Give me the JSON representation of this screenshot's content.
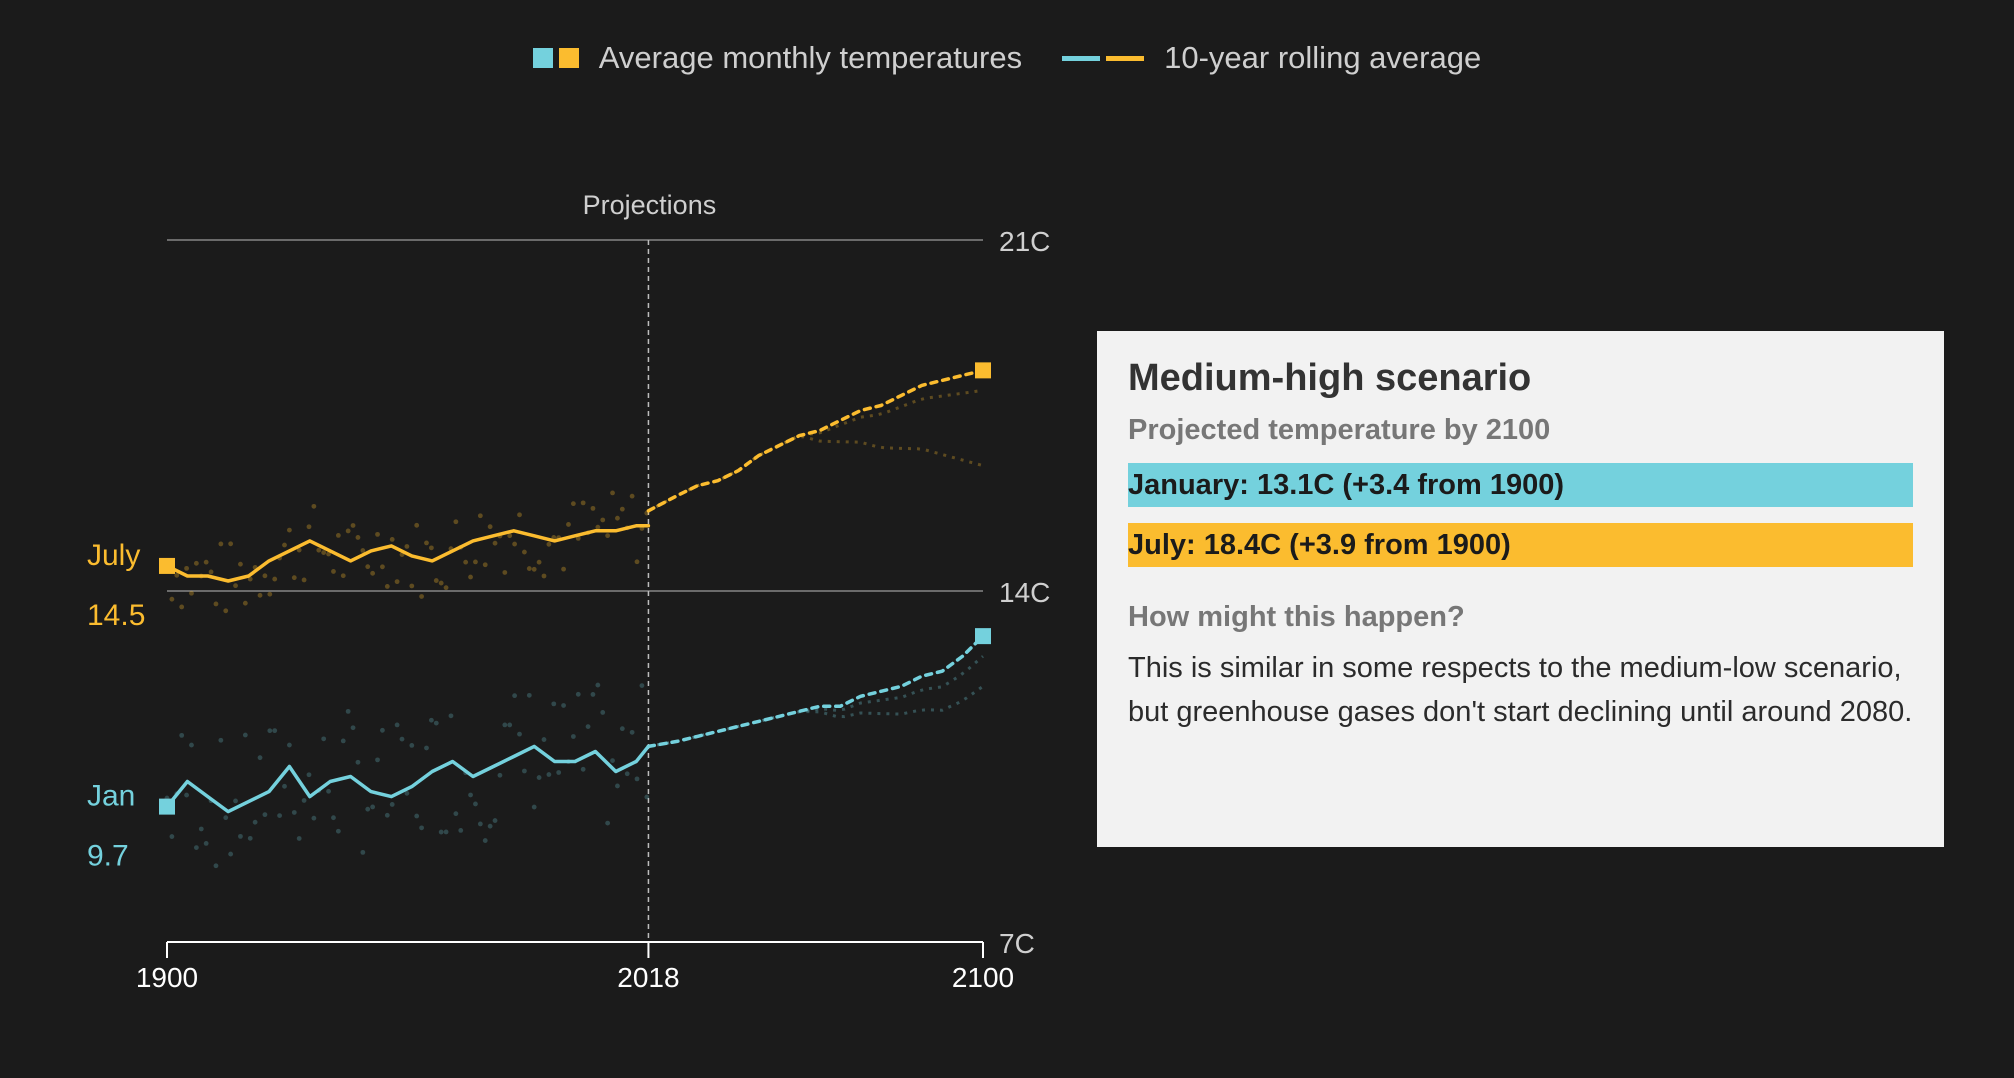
{
  "legend": {
    "monthly_label": "Average monthly temperatures",
    "rolling_label": "10-year rolling average"
  },
  "colors": {
    "jan": "#74d1dd",
    "jul": "#fbbc2f",
    "background": "#1b1b1b",
    "grid": "#6b6b6b",
    "text": "#cfcfcf"
  },
  "card": {
    "title": "Medium-high scenario",
    "subtitle": "Projected temperature by 2100",
    "january": "January: 13.1C (+3.4 from 1900)",
    "july": "July: 18.4C (+3.9 from 1900)",
    "question": "How might this happen?",
    "description": "This is similar in some respects to the medium-low scenario, but greenhouse gases don't start declining until around 2080."
  },
  "chart_data": {
    "type": "line",
    "title": "",
    "xlabel": "",
    "ylabel": "",
    "xlim": [
      1900,
      2100
    ],
    "ylim": [
      7,
      21
    ],
    "x_ticks": [
      1900,
      2018,
      2100
    ],
    "y_ticks": [
      {
        "value": 21,
        "label": "21C"
      },
      {
        "value": 14,
        "label": "14C"
      },
      {
        "value": 7,
        "label": "7C"
      }
    ],
    "projection_start": 2018,
    "projection_label": "Projections",
    "series_labels": [
      {
        "name": "July",
        "value_label": "14.5"
      },
      {
        "name": "Jan",
        "value_label": "9.7"
      }
    ],
    "series": [
      {
        "name": "July 10-year rolling average",
        "x": [
          1900,
          1905,
          1910,
          1915,
          1920,
          1925,
          1930,
          1935,
          1940,
          1945,
          1950,
          1955,
          1960,
          1965,
          1970,
          1975,
          1980,
          1985,
          1990,
          1995,
          2000,
          2005,
          2010,
          2015,
          2018
        ],
        "values": [
          14.5,
          14.3,
          14.3,
          14.2,
          14.3,
          14.6,
          14.8,
          15.0,
          14.8,
          14.6,
          14.8,
          14.9,
          14.7,
          14.6,
          14.8,
          15.0,
          15.1,
          15.2,
          15.1,
          15.0,
          15.1,
          15.2,
          15.2,
          15.3,
          15.3
        ]
      },
      {
        "name": "July projection",
        "x": [
          2018,
          2025,
          2030,
          2035,
          2040,
          2045,
          2050,
          2055,
          2060,
          2065,
          2070,
          2075,
          2080,
          2085,
          2090,
          2095,
          2100
        ],
        "values": [
          15.6,
          15.9,
          16.1,
          16.2,
          16.4,
          16.7,
          16.9,
          17.1,
          17.2,
          17.4,
          17.6,
          17.7,
          17.9,
          18.1,
          18.2,
          18.3,
          18.4
        ]
      },
      {
        "name": "January 10-year rolling average",
        "x": [
          1900,
          1905,
          1910,
          1915,
          1920,
          1925,
          1930,
          1935,
          1940,
          1945,
          1950,
          1955,
          1960,
          1965,
          1970,
          1975,
          1980,
          1985,
          1990,
          1995,
          2000,
          2005,
          2010,
          2015,
          2018
        ],
        "values": [
          9.7,
          10.2,
          9.9,
          9.6,
          9.8,
          10.0,
          10.5,
          9.9,
          10.2,
          10.3,
          10.0,
          9.9,
          10.1,
          10.4,
          10.6,
          10.3,
          10.5,
          10.7,
          10.9,
          10.6,
          10.6,
          10.8,
          10.4,
          10.6,
          10.9
        ]
      },
      {
        "name": "January projection",
        "x": [
          2018,
          2025,
          2030,
          2035,
          2040,
          2045,
          2050,
          2055,
          2060,
          2065,
          2070,
          2075,
          2080,
          2085,
          2090,
          2095,
          2100
        ],
        "values": [
          10.9,
          11.0,
          11.1,
          11.2,
          11.3,
          11.4,
          11.5,
          11.6,
          11.7,
          11.7,
          11.9,
          12.0,
          12.1,
          12.3,
          12.4,
          12.7,
          13.1
        ]
      }
    ],
    "endpoints": [
      {
        "series": "July",
        "year": 1900,
        "value": 14.5
      },
      {
        "series": "July",
        "year": 2100,
        "value": 18.4
      },
      {
        "series": "Jan",
        "year": 1900,
        "value": 9.7
      },
      {
        "series": "Jan",
        "year": 2100,
        "value": 13.1
      }
    ]
  }
}
